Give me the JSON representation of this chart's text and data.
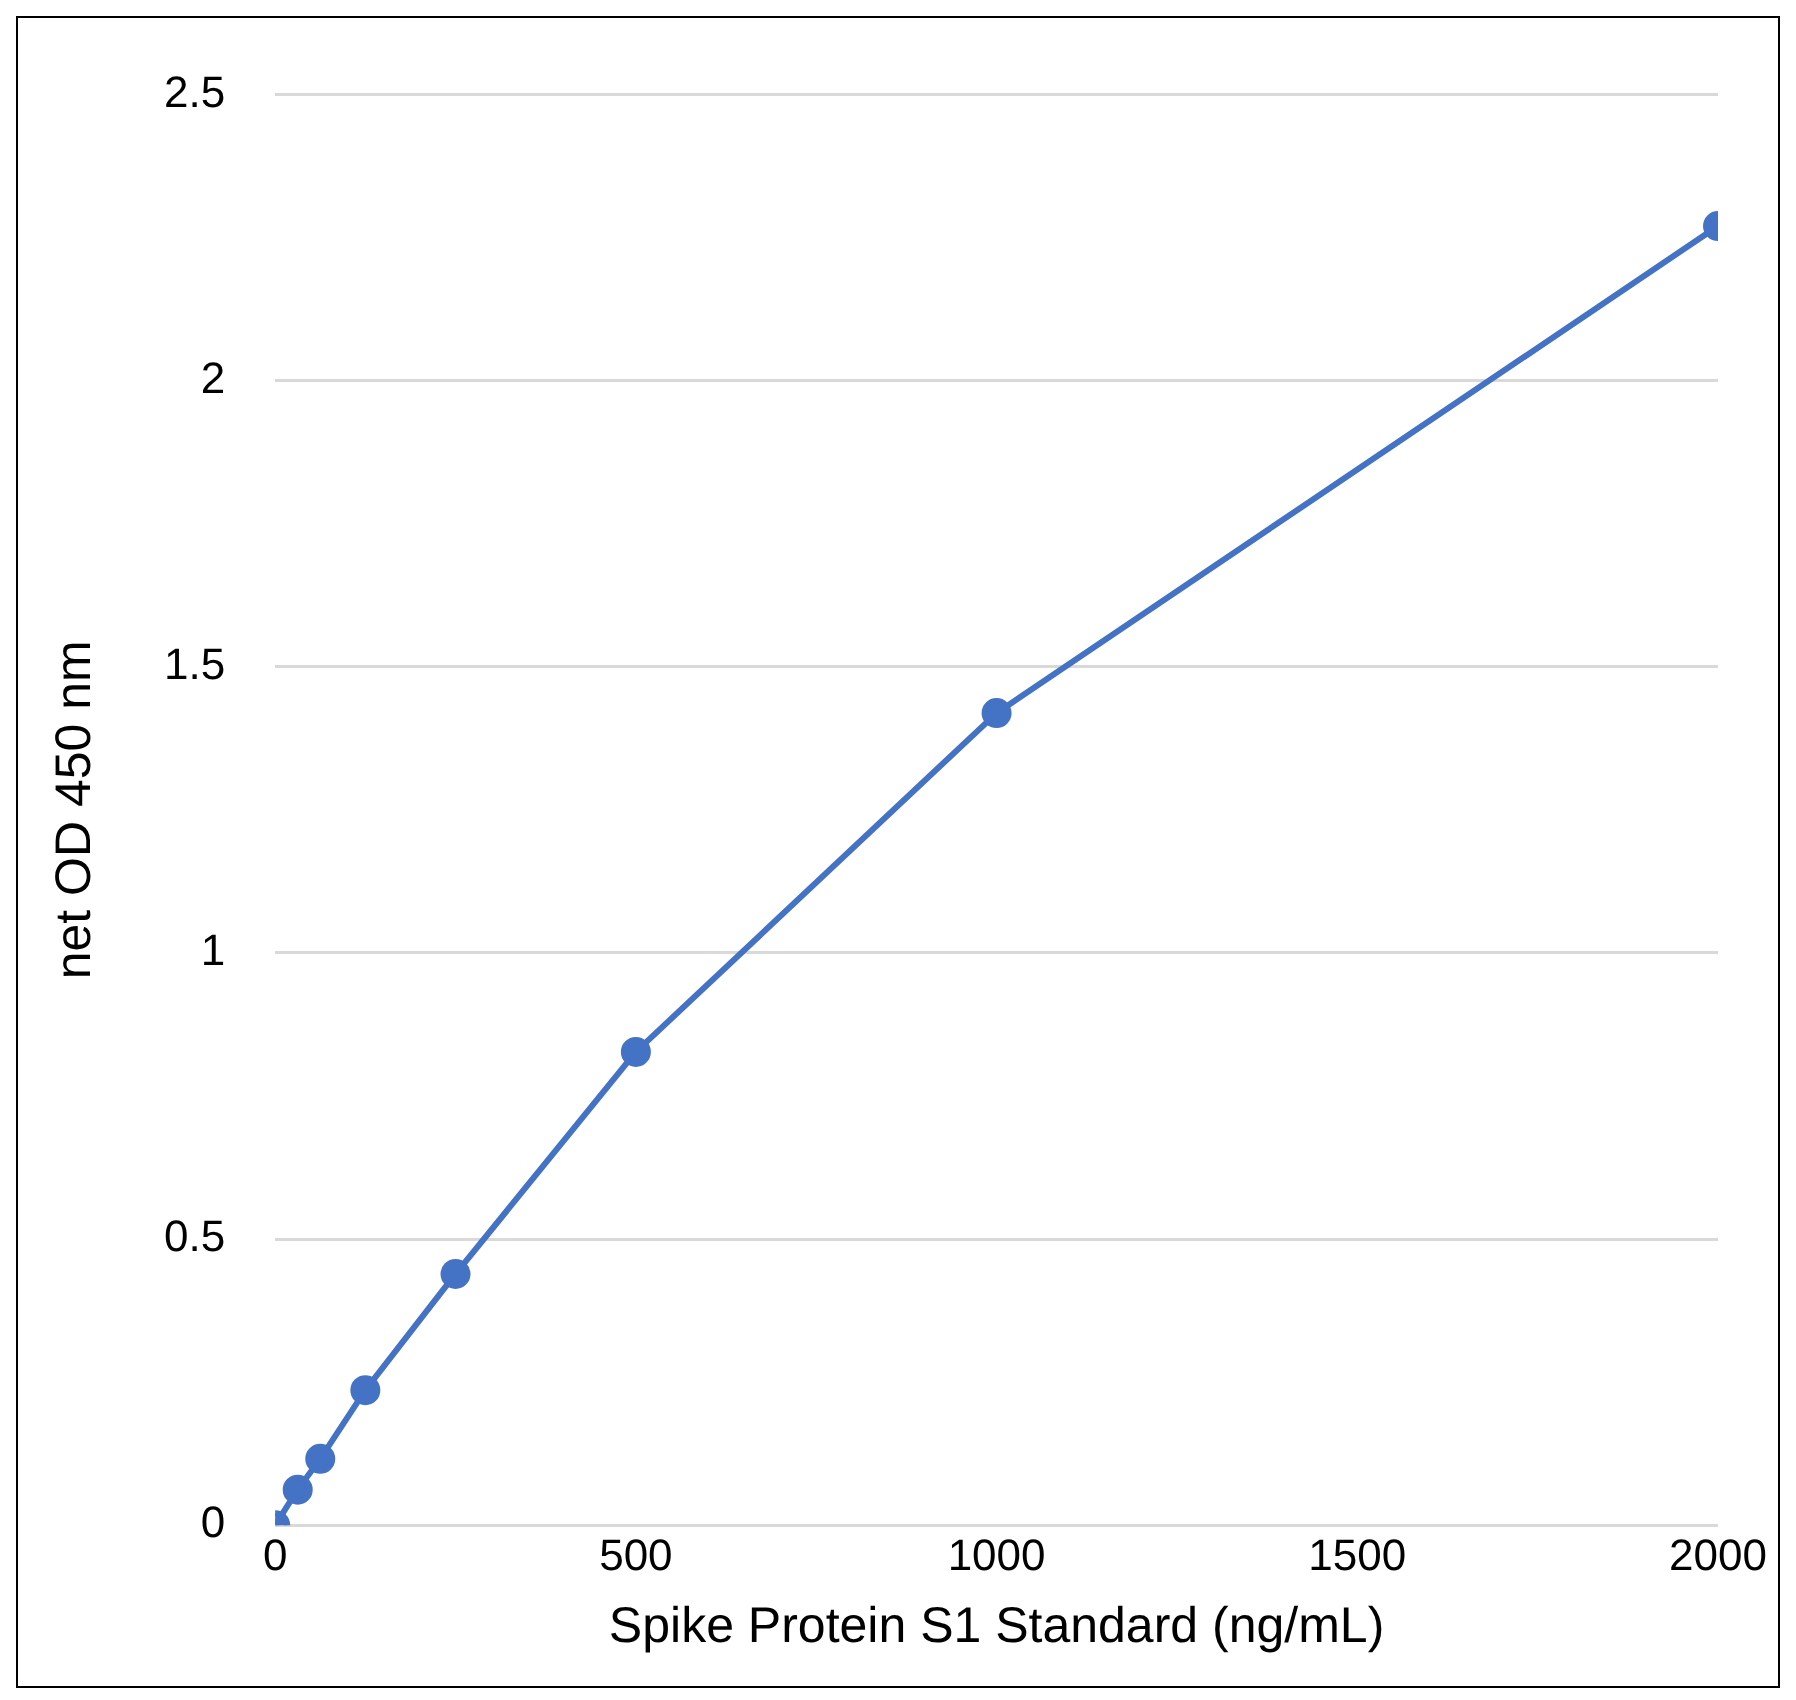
{
  "chart_data": {
    "type": "line",
    "xlabel": "Spike Protein S1 Standard (ng/mL)",
    "ylabel": "net OD 450 nm",
    "x": [
      0,
      31.25,
      62.5,
      125,
      250,
      500,
      1000,
      2000
    ],
    "series": [
      {
        "color": "#4472c4",
        "values": [
          0,
          0.062,
          0.116,
          0.236,
          0.439,
          0.827,
          1.419,
          2.27
        ]
      }
    ],
    "xlim": [
      0,
      2000
    ],
    "xticks": [
      0,
      500,
      1000,
      1500,
      2000
    ],
    "ylim": [
      0,
      2.5
    ],
    "yticks": [
      0,
      0.5,
      1,
      1.5,
      2,
      2.5
    ],
    "grid": "y",
    "legend": false,
    "marker": "circle",
    "line_style": "solid"
  }
}
